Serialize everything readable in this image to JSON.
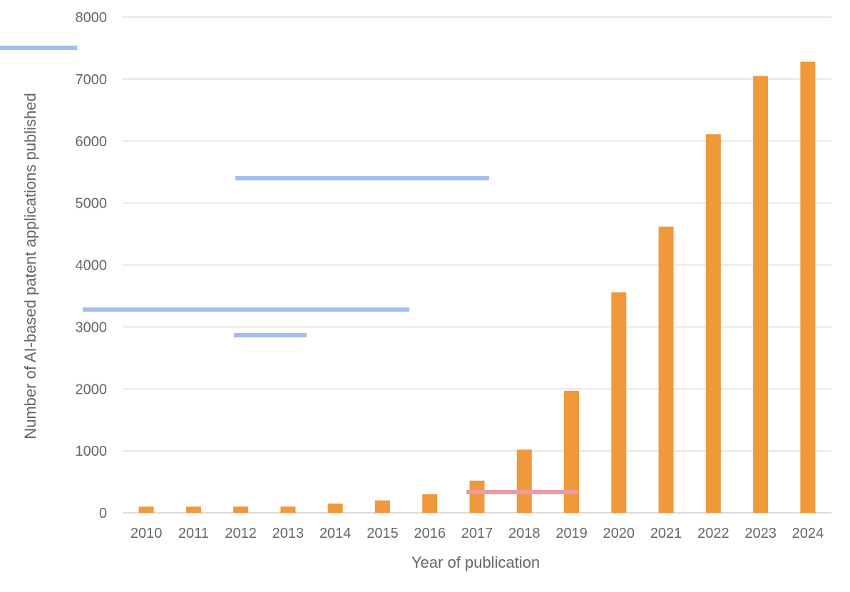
{
  "chart_data": {
    "type": "bar",
    "xlabel": "Year of publication",
    "ylabel": "Number of AI-based patent applications published",
    "ylim": [
      0,
      8000
    ],
    "yticks": [
      0,
      1000,
      2000,
      3000,
      4000,
      5000,
      6000,
      7000,
      8000
    ],
    "grid": true,
    "categories": [
      "2010",
      "2011",
      "2012",
      "2013",
      "2014",
      "2015",
      "2016",
      "2017",
      "2018",
      "2019",
      "2020",
      "2021",
      "2022",
      "2023",
      "2024"
    ],
    "values": [
      100,
      100,
      100,
      100,
      150,
      200,
      300,
      520,
      1020,
      1970,
      3560,
      4620,
      6110,
      7050,
      7280
    ],
    "colors": {
      "bar": "#f0993a",
      "grid": "#dcdcdc",
      "text": "#666666",
      "highlight_blue": "#a4bdf0",
      "highlight_red": "#ee9aa3"
    }
  }
}
